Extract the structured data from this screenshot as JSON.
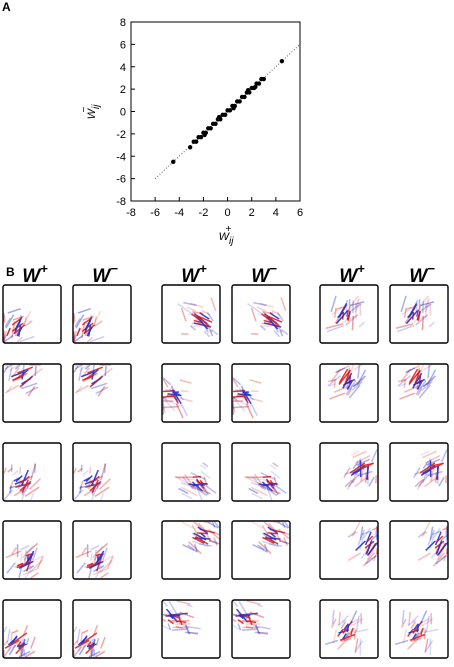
{
  "chart_data": {
    "type": "scatter",
    "panel_label": "A",
    "x": [
      -3.1,
      -2.8,
      -2.6,
      -2.4,
      -2.2,
      -2.0,
      -1.8,
      -1.6,
      -1.4,
      -1.2,
      -1.0,
      -0.8,
      -0.6,
      -0.4,
      -0.2,
      0.0,
      0.2,
      0.4,
      0.6,
      0.8,
      1.0,
      1.2,
      1.4,
      1.6,
      1.8,
      2.0,
      2.2,
      2.4,
      2.6,
      2.8,
      3.0,
      -4.5,
      4.5,
      -1.9,
      1.7,
      0.5,
      -0.7,
      2.3
    ],
    "y": [
      -3.2,
      -2.7,
      -2.7,
      -2.3,
      -2.3,
      -1.9,
      -1.9,
      -1.5,
      -1.5,
      -1.1,
      -1.1,
      -0.7,
      -0.7,
      -0.3,
      -0.3,
      0.1,
      0.1,
      0.5,
      0.5,
      0.9,
      0.9,
      1.3,
      1.3,
      1.7,
      1.7,
      2.1,
      2.1,
      2.5,
      2.5,
      2.9,
      2.9,
      -4.5,
      4.5,
      -2.1,
      1.9,
      0.3,
      -0.5,
      2.2
    ],
    "color": "#000000",
    "xlim": [
      -8,
      6
    ],
    "ylim": [
      -8,
      8
    ],
    "xticks": [
      -8,
      -6,
      -4,
      -2,
      0,
      2,
      4,
      6
    ],
    "yticks": [
      -8,
      -6,
      -4,
      -2,
      0,
      2,
      4,
      6,
      8
    ],
    "xlabel": "W",
    "xlabel_sub": "ij",
    "xlabel_sup": "+",
    "ylabel": "W",
    "ylabel_sub": "ij",
    "ylabel_sup": "−",
    "reference_line": {
      "x": [
        -6,
        6
      ],
      "y": [
        -6,
        6
      ]
    }
  },
  "panel_b": {
    "label": "B",
    "column_headers": [
      {
        "text": "W",
        "sup": "+"
      },
      {
        "text": "W",
        "sup": "−"
      },
      {
        "text": "W",
        "sup": "+"
      },
      {
        "text": "W",
        "sup": "−"
      },
      {
        "text": "W",
        "sup": "+"
      },
      {
        "text": "W",
        "sup": "−"
      }
    ]
  }
}
